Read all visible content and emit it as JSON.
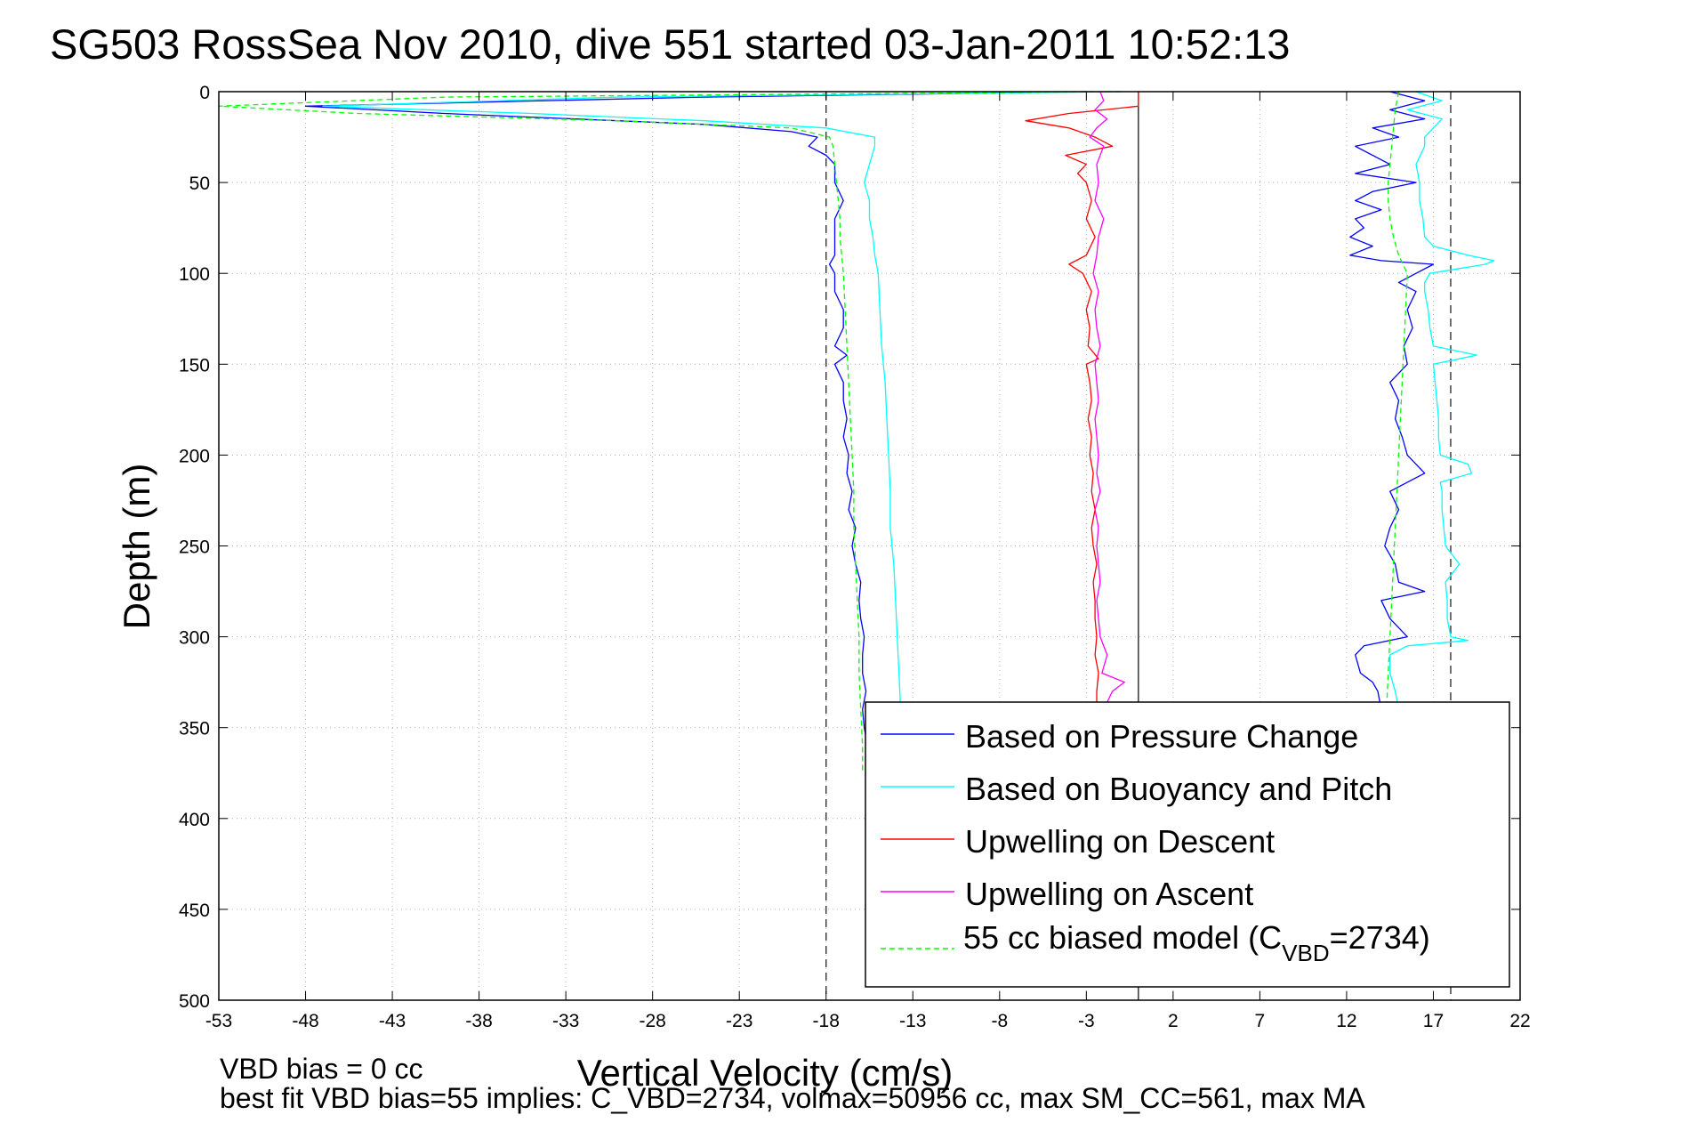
{
  "chart_data": {
    "type": "line",
    "title": "SG503 RossSea Nov 2010, dive 551 started 03-Jan-2011 10:52:13",
    "xlabel": "Vertical Velocity (cm/s)",
    "ylabel": "Depth (m)",
    "xlim": [
      -53,
      22
    ],
    "ylim": [
      0,
      500
    ],
    "y_reversed": true,
    "grid": true,
    "xticks": [
      "-53",
      "-48",
      "-43",
      "-38",
      "-33",
      "-28",
      "-23",
      "-18",
      "-13",
      "-8",
      "-3",
      "2",
      "7",
      "12",
      "17",
      "22"
    ],
    "yticks": [
      "0",
      "50",
      "100",
      "150",
      "200",
      "250",
      "300",
      "350",
      "400",
      "450",
      "500"
    ],
    "reference_lines": {
      "dashed_x": [
        -18,
        18
      ],
      "solid_x": [
        0
      ]
    },
    "legend_position": "bottom-right",
    "legend": [
      {
        "label": "Based on Pressure Change",
        "color": "#0000ff",
        "dash": "solid"
      },
      {
        "label": "Based on Buoyancy and Pitch",
        "color": "#00ffff",
        "dash": "solid"
      },
      {
        "label": "Upwelling on Descent",
        "color": "#ff0000",
        "dash": "solid"
      },
      {
        "label": "Upwelling on Ascent",
        "color": "#ff00ff",
        "dash": "solid"
      },
      {
        "label_main": "55 cc biased model (C",
        "label_sub": "VBD",
        "label_end": "=2734)",
        "color": "#00ff00",
        "dash": "dashed"
      }
    ],
    "series": [
      {
        "color": "#0000ff",
        "depth": [
          0,
          3,
          8,
          12,
          18,
          22,
          25,
          30,
          35,
          40,
          50,
          60,
          70,
          80,
          90,
          95,
          100,
          110,
          120,
          130,
          140,
          145,
          150,
          160,
          170,
          180,
          190,
          200,
          210,
          220,
          230,
          240,
          250,
          260,
          270,
          280,
          290,
          300,
          310,
          320,
          330,
          340,
          350,
          360,
          370,
          375
        ],
        "velocity": [
          -3,
          -25,
          -48,
          -40,
          -25,
          -20,
          -18.5,
          -19,
          -18,
          -17.5,
          -17.5,
          -17,
          -17.5,
          -17.5,
          -17.5,
          -17.8,
          -17.5,
          -17.5,
          -17,
          -17,
          -17.5,
          -16.8,
          -17.5,
          -17,
          -17,
          -16.8,
          -17,
          -16.7,
          -16.8,
          -16.5,
          -16.7,
          -16.3,
          -16.5,
          -16.3,
          -16,
          -16.1,
          -16,
          -15.8,
          -15.9,
          -15.9,
          -15.7,
          -15.9,
          -15.8,
          -15.6,
          -15.5,
          -15.6
        ]
      },
      {
        "color": "#00ffff",
        "depth": [
          0,
          3,
          8,
          12,
          16,
          20,
          25,
          30,
          40,
          50,
          60,
          70,
          80,
          90,
          100,
          120,
          140,
          160,
          180,
          200,
          220,
          240,
          260,
          280,
          300,
          320,
          340,
          360,
          375
        ],
        "velocity": [
          -1,
          -30,
          -47,
          -35,
          -25,
          -18,
          -15.2,
          -15.2,
          -15.5,
          -15.8,
          -15.5,
          -15.5,
          -15.3,
          -15.2,
          -15,
          -14.9,
          -14.8,
          -14.6,
          -14.5,
          -14.4,
          -14.3,
          -14.3,
          -14.1,
          -14,
          -13.9,
          -13.8,
          -13.7,
          -13.7,
          -13.6
        ]
      },
      {
        "color": "#ff0000",
        "depth": [
          0,
          8,
          12,
          16,
          20,
          25,
          30,
          35,
          40,
          45,
          50,
          60,
          70,
          80,
          90,
          95,
          100,
          110,
          120,
          130,
          140,
          147,
          150,
          160,
          170,
          180,
          190,
          200,
          210,
          220,
          230,
          240,
          250,
          260,
          270,
          280,
          290,
          300,
          310,
          320,
          330,
          340
        ],
        "velocity": [
          0,
          0,
          -4,
          -6.5,
          -4,
          -2.5,
          -1.5,
          -4.2,
          -3,
          -3.5,
          -3,
          -2.7,
          -3,
          -2.5,
          -3,
          -4,
          -3.2,
          -2.7,
          -3,
          -2.8,
          -2.9,
          -2.3,
          -3,
          -2.8,
          -2.7,
          -2.9,
          -2.7,
          -2.8,
          -2.6,
          -2.7,
          -2.5,
          -2.7,
          -2.6,
          -2.4,
          -2.6,
          -2.5,
          -2.5,
          -2.4,
          -2.5,
          -2.3,
          -2.4,
          -2.4
        ]
      },
      {
        "color": "#ff00ff",
        "depth": [
          0,
          5,
          10,
          15,
          20,
          25,
          30,
          40,
          50,
          60,
          70,
          80,
          90,
          100,
          110,
          120,
          130,
          140,
          150,
          160,
          170,
          180,
          190,
          200,
          210,
          220,
          230,
          240,
          250,
          260,
          270,
          280,
          290,
          300,
          310,
          320,
          325,
          330,
          340
        ],
        "velocity": [
          -2.2,
          -2,
          -2.5,
          -1.8,
          -2.4,
          -2.8,
          -2,
          -2.4,
          -2.3,
          -2.5,
          -2,
          -2.3,
          -2.4,
          -2.6,
          -2.3,
          -2.5,
          -2.4,
          -2.2,
          -2.5,
          -2.4,
          -2.3,
          -2.5,
          -2.4,
          -2.3,
          -2.4,
          -2.2,
          -2.5,
          -2.3,
          -2.4,
          -2.3,
          -2.2,
          -2.4,
          -2.3,
          -2.2,
          -1.8,
          -2.1,
          -0.8,
          -1.5,
          -2
        ]
      },
      {
        "color": "#00ff00",
        "dashed": true,
        "depth": [
          0,
          3,
          8,
          12,
          16,
          20,
          25,
          30,
          40,
          50,
          60,
          70,
          80,
          90,
          100,
          120,
          140,
          160,
          180,
          200,
          220,
          240,
          260,
          280,
          300,
          320,
          340,
          360,
          375
        ],
        "velocity": [
          -1,
          -40,
          -53,
          -45,
          -30,
          -20,
          -17.8,
          -17.6,
          -17.5,
          -17.4,
          -17.3,
          -17.2,
          -17.2,
          -17.1,
          -17,
          -16.9,
          -16.8,
          -16.7,
          -16.6,
          -16.5,
          -16.4,
          -16.4,
          -16.3,
          -16.2,
          -16.1,
          -16.1,
          -16,
          -15.9,
          -15.9
        ]
      },
      {
        "color": "#0000ff",
        "depth": [
          0,
          5,
          10,
          15,
          20,
          25,
          30,
          40,
          45,
          50,
          55,
          60,
          65,
          70,
          75,
          80,
          85,
          90,
          93,
          95,
          100,
          105,
          110,
          120,
          130,
          140,
          150,
          160,
          170,
          180,
          190,
          200,
          210,
          220,
          230,
          240,
          250,
          260,
          270,
          275,
          280,
          290,
          300,
          305,
          310,
          320,
          325,
          330,
          340
        ],
        "velocity": [
          14.5,
          16.5,
          14.5,
          16.5,
          13.5,
          15,
          12.5,
          14.5,
          12.5,
          16,
          13.5,
          12.5,
          14,
          12.5,
          13,
          12.2,
          13.5,
          12.2,
          14,
          17,
          16,
          15,
          16,
          15.5,
          15.8,
          15.3,
          15.5,
          14.5,
          15,
          14.8,
          15.2,
          15.5,
          16.5,
          14.5,
          15,
          14.5,
          14.2,
          14.8,
          15,
          16.5,
          14,
          14.5,
          15.5,
          13,
          12.5,
          12.8,
          13.5,
          13.8,
          14
        ]
      },
      {
        "color": "#00ffff",
        "depth": [
          0,
          5,
          10,
          15,
          20,
          25,
          30,
          40,
          50,
          60,
          70,
          80,
          85,
          90,
          93,
          95,
          100,
          105,
          110,
          120,
          130,
          140,
          145,
          150,
          160,
          170,
          180,
          190,
          200,
          205,
          210,
          215,
          220,
          230,
          240,
          250,
          260,
          270,
          280,
          290,
          300,
          302,
          305,
          310,
          320,
          330,
          340
        ],
        "velocity": [
          16,
          17.5,
          15.5,
          17.5,
          17,
          16.5,
          16.5,
          16,
          16.2,
          16.2,
          16.4,
          16.5,
          17,
          19,
          20.5,
          20,
          16.8,
          16.5,
          16.5,
          16.7,
          16.8,
          17,
          19.5,
          17,
          17.1,
          17.2,
          17.3,
          17.3,
          17.4,
          19,
          19.2,
          17.4,
          17.5,
          17.5,
          17.6,
          17.7,
          18.5,
          17.7,
          17.8,
          17.8,
          18,
          19,
          15.5,
          14.5,
          14.5,
          14.8,
          15
        ]
      },
      {
        "color": "#00ff00",
        "dashed": true,
        "depth": [
          0,
          10,
          20,
          30,
          40,
          50,
          60,
          70,
          80,
          90,
          100,
          120,
          140,
          160,
          180,
          200,
          220,
          240,
          260,
          280,
          300,
          320,
          340
        ],
        "velocity": [
          15,
          14.8,
          14.7,
          14.6,
          14.5,
          14.4,
          14.4,
          14.5,
          14.7,
          15,
          15.5,
          15.4,
          15.3,
          15.2,
          15.1,
          15,
          14.9,
          14.8,
          14.7,
          14.6,
          14.5,
          14.4,
          14.3
        ]
      }
    ],
    "notes": [
      "VBD bias = 0 cc",
      "best fit VBD bias=55 implies: C_VBD=2734, volmax=50956 cc, max SM_CC=561, max MA"
    ]
  }
}
